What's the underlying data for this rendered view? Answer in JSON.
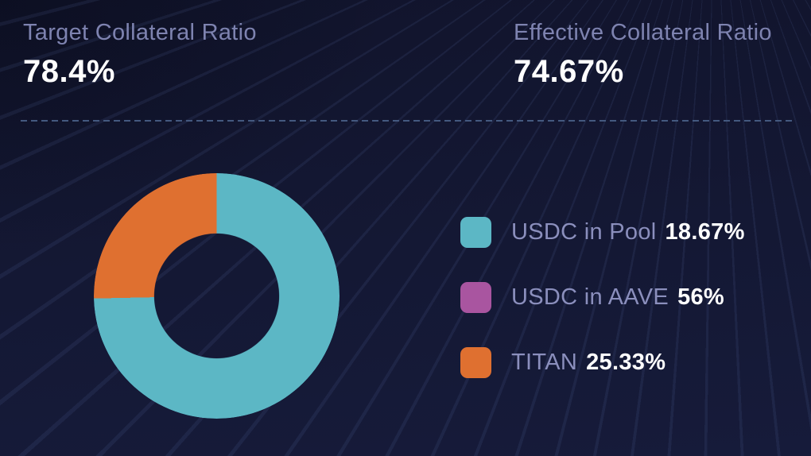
{
  "stats": {
    "target": {
      "label": "Target Collateral Ratio",
      "value": "78.4%"
    },
    "effective": {
      "label": "Effective Collateral Ratio",
      "value": "74.67%"
    }
  },
  "legend": [
    {
      "label": "USDC in Pool",
      "value": "18.67%",
      "color": "#5cb7c5"
    },
    {
      "label": "USDC in AAVE",
      "value": "56%",
      "color": "#a955a0"
    },
    {
      "label": "TITAN",
      "value": "25.33%",
      "color": "#df7030"
    }
  ],
  "chart_data": {
    "type": "pie",
    "subtype": "donut",
    "categories": [
      "USDC in Pool",
      "USDC in AAVE",
      "TITAN"
    ],
    "values": [
      18.67,
      56,
      25.33
    ],
    "unit": "%",
    "start_angle_deg": 0,
    "direction": "clockwise",
    "inner_radius_ratio": 0.51,
    "slice_render_colors": [
      "#5cb7c5",
      "#5cb7c5",
      "#df7030"
    ],
    "legend_position": "right",
    "legend_colors": [
      "#5cb7c5",
      "#a955a0",
      "#df7030"
    ]
  },
  "colors": {
    "background_top": "#11142c",
    "background_bottom": "#161b3a",
    "label_text": "#7e83b0",
    "legend_label_text": "#8b8fbd",
    "value_text": "#ffffff",
    "divider": "#44597f",
    "teal": "#5cb7c5",
    "purple": "#a955a0",
    "orange": "#df7030"
  }
}
